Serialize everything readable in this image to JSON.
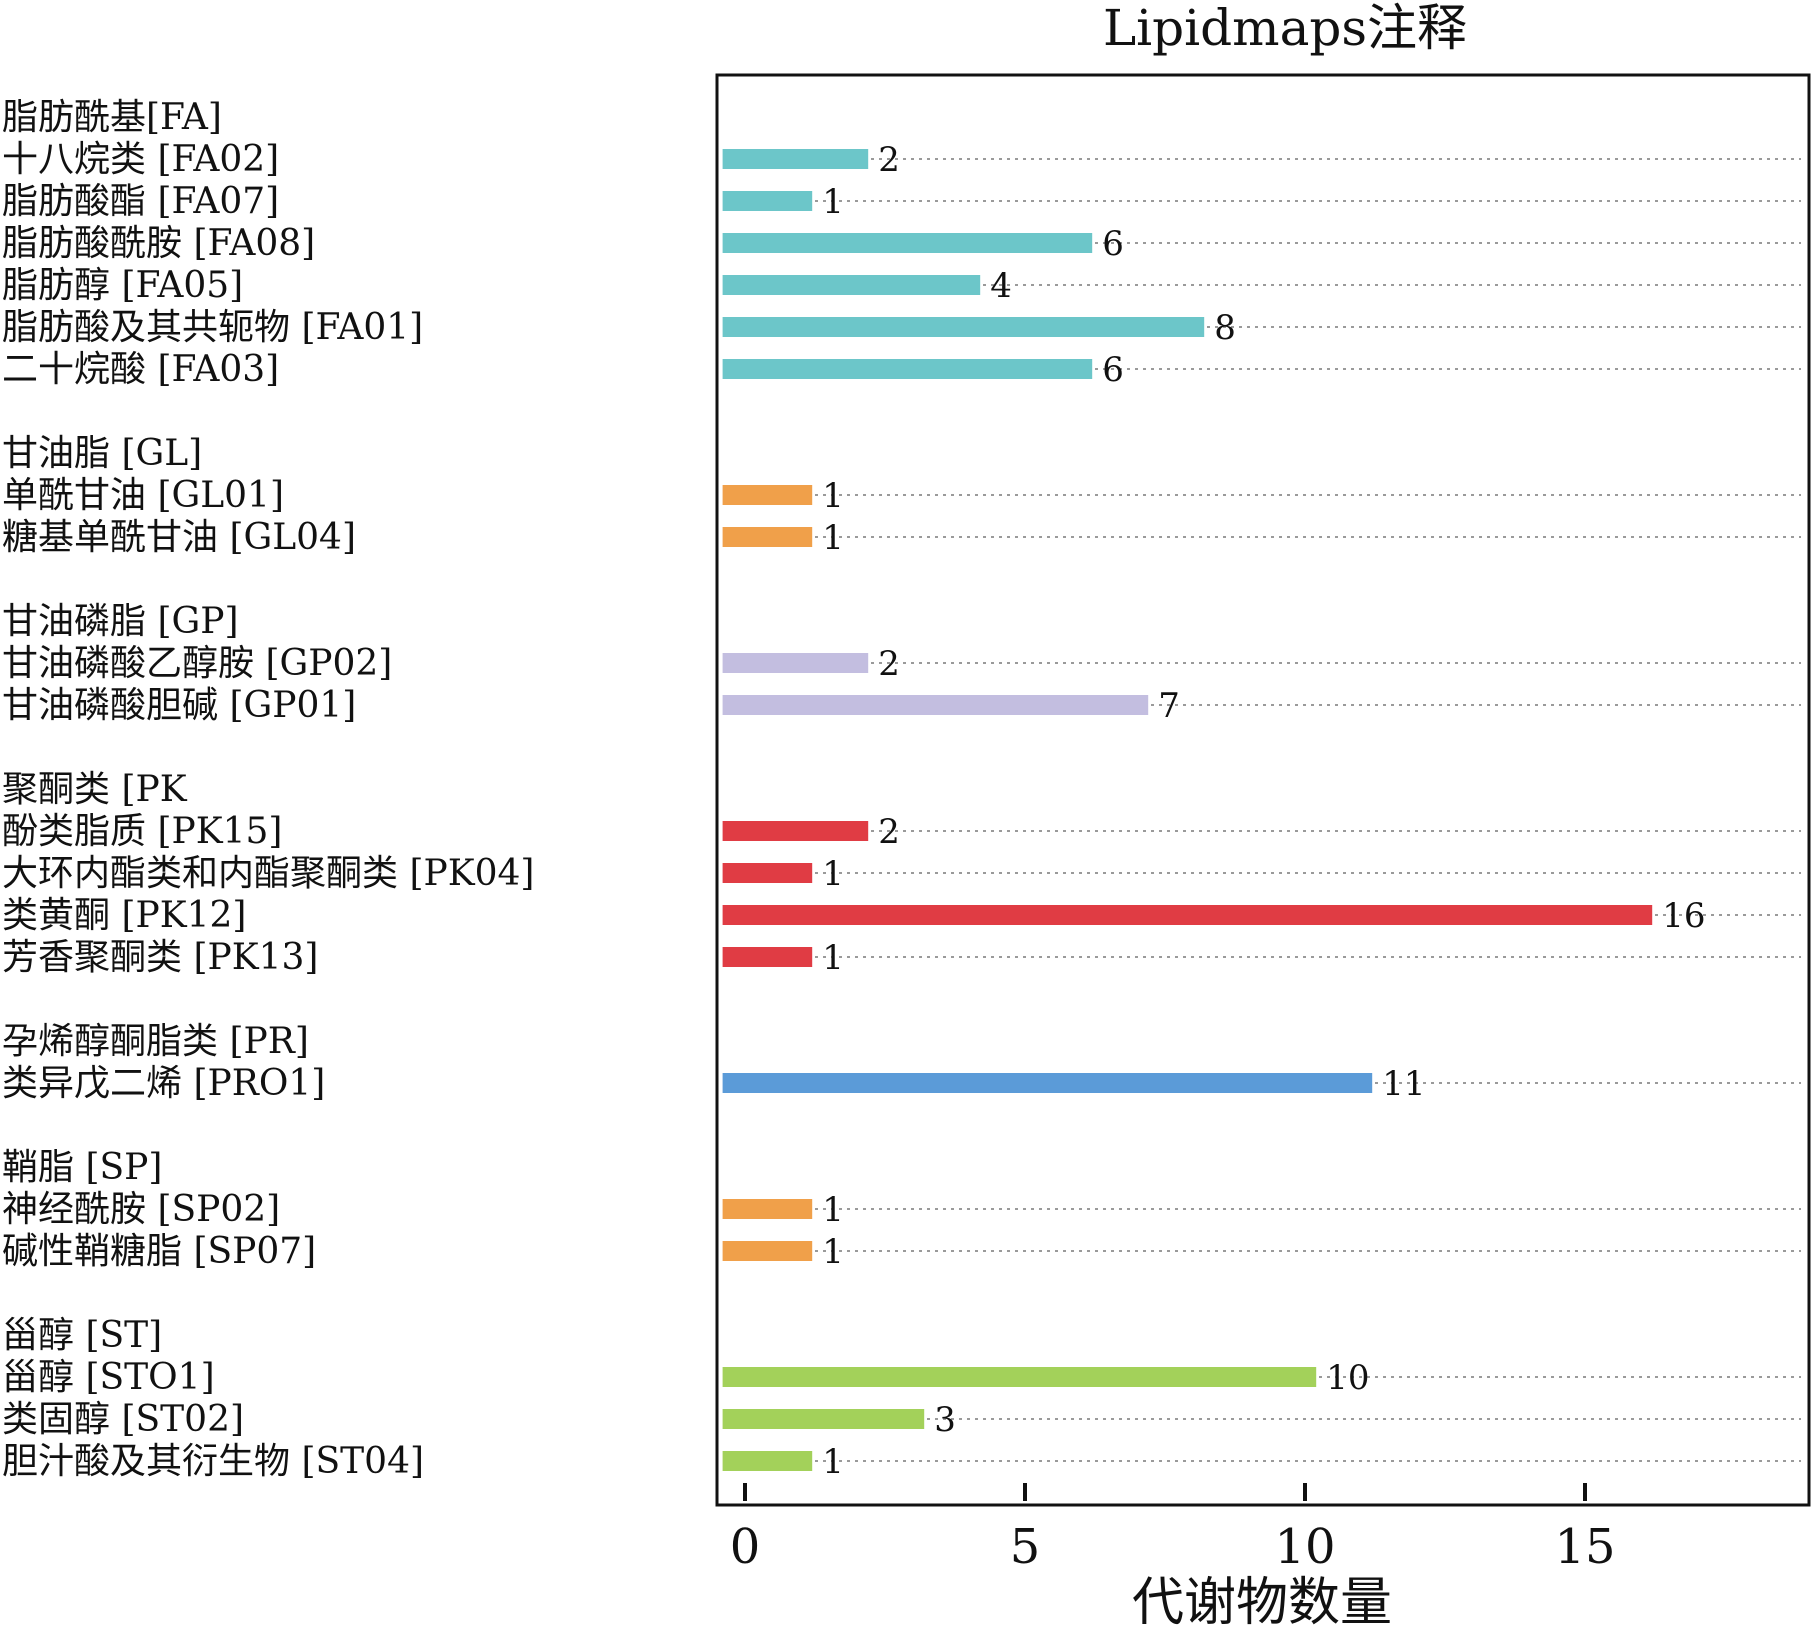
{
  "chart_data": {
    "type": "bar",
    "orientation": "horizontal",
    "title": "Lipidmaps注释",
    "xlabel": "代谢物数量",
    "ylabel": "",
    "xlim": [
      -0.5,
      19
    ],
    "xticks": [
      0,
      5,
      10,
      15
    ],
    "grid": "dotted horizontal guide lines per row",
    "legend": "none",
    "groups": [
      {
        "name": "脂肪酰基[FA]",
        "color": "#6cc6c9",
        "items": [
          {
            "label": "十八烷类 [FA02]",
            "value": 2
          },
          {
            "label": "脂肪酸酯 [FA07]",
            "value": 1
          },
          {
            "label": "脂肪酸酰胺 [FA08]",
            "value": 6
          },
          {
            "label": "脂肪醇 [FA05]",
            "value": 4
          },
          {
            "label": "脂肪酸及其共轭物 [FA01]",
            "value": 8
          },
          {
            "label": "二十烷酸 [FA03]",
            "value": 6
          }
        ]
      },
      {
        "name": "甘油脂 [GL]",
        "color": "#f0a04a",
        "items": [
          {
            "label": "单酰甘油 [GL01]",
            "value": 1
          },
          {
            "label": "糖基单酰甘油 [GL04]",
            "value": 1
          }
        ]
      },
      {
        "name": "甘油磷脂 [GP]",
        "color": "#c3bee0",
        "items": [
          {
            "label": "甘油磷酸乙醇胺 [GP02]",
            "value": 2
          },
          {
            "label": "甘油磷酸胆碱 [GP01]",
            "value": 7
          }
        ]
      },
      {
        "name": "聚酮类 [PK",
        "color": "#e03c44",
        "items": [
          {
            "label": "酚类脂质 [PK15]",
            "value": 2
          },
          {
            "label": "大环内酯类和内酯聚酮类 [PK04]",
            "value": 1
          },
          {
            "label": "类黄酮 [PK12]",
            "value": 16
          },
          {
            "label": "芳香聚酮类 [PK13]",
            "value": 1
          }
        ]
      },
      {
        "name": "孕烯醇酮脂类 [PR]",
        "color": "#5b9bd8",
        "items": [
          {
            "label": "类异戊二烯 [PRO1]",
            "value": 11
          }
        ]
      },
      {
        "name": "鞘脂 [SP]",
        "color": "#f0a04a",
        "items": [
          {
            "label": "神经酰胺 [SP02]",
            "value": 1
          },
          {
            "label": "碱性鞘糖脂 [SP07]",
            "value": 1
          }
        ]
      },
      {
        "name": "甾醇 [ST]",
        "color": "#a3d15a",
        "items": [
          {
            "label": "甾醇 [STO1]",
            "value": 10
          },
          {
            "label": "类固醇 [ST02]",
            "value": 3
          },
          {
            "label": "胆汁酸及其衍生物 [ST04]",
            "value": 1
          }
        ]
      }
    ]
  }
}
